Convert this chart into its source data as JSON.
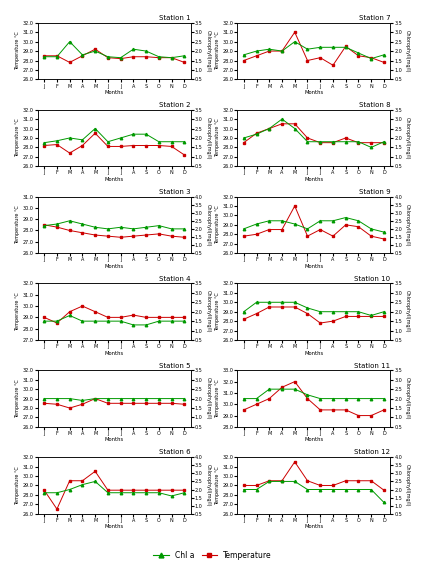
{
  "months": [
    "J",
    "F",
    "M",
    "A",
    "M",
    "J",
    "J",
    "A",
    "S",
    "O",
    "N",
    "D"
  ],
  "stations_left": [
    "Station 1",
    "Station 2",
    "Station 3",
    "Station 4",
    "Station 5",
    "Station 6"
  ],
  "stations_right": [
    "Station 7",
    "Station 8",
    "Station 9",
    "Station 10",
    "Station 11",
    "Station 12"
  ],
  "stations_data": {
    "Station 1": {
      "temp": [
        28.5,
        28.5,
        27.8,
        28.5,
        29.2,
        28.3,
        28.2,
        28.4,
        28.4,
        28.3,
        28.3,
        27.8
      ],
      "chla": [
        1.7,
        1.7,
        2.5,
        1.8,
        2.0,
        1.7,
        1.65,
        2.1,
        2.0,
        1.7,
        1.65,
        1.75
      ],
      "temp_ylim": [
        26.0,
        32.0
      ],
      "chla_ylim": [
        0.5,
        3.5
      ],
      "temp_ticks": [
        26.0,
        27.0,
        28.0,
        29.0,
        30.0,
        31.0,
        32.0
      ],
      "chla_ticks": [
        0.5,
        1.0,
        1.5,
        2.0,
        2.5,
        3.0,
        3.5
      ]
    },
    "Station 2": {
      "temp": [
        28.2,
        28.3,
        27.4,
        28.2,
        29.5,
        28.1,
        28.1,
        28.2,
        28.2,
        28.2,
        28.1,
        27.2
      ],
      "chla": [
        1.75,
        1.85,
        2.0,
        1.9,
        2.5,
        1.8,
        2.0,
        2.2,
        2.2,
        1.8,
        1.8,
        1.8
      ],
      "temp_ylim": [
        26.0,
        32.0
      ],
      "chla_ylim": [
        0.5,
        3.5
      ],
      "temp_ticks": [
        26.0,
        27.0,
        28.0,
        29.0,
        30.0,
        31.0,
        32.0
      ],
      "chla_ticks": [
        0.5,
        1.0,
        1.5,
        2.0,
        2.5,
        3.0,
        3.5
      ]
    },
    "Station 3": {
      "temp": [
        28.5,
        28.3,
        28.0,
        27.8,
        27.6,
        27.5,
        27.4,
        27.5,
        27.6,
        27.7,
        27.5,
        27.4
      ],
      "chla": [
        2.2,
        2.3,
        2.5,
        2.3,
        2.1,
        2.0,
        2.1,
        2.0,
        2.1,
        2.2,
        2.0,
        2.0
      ],
      "temp_ylim": [
        26.0,
        31.0
      ],
      "chla_ylim": [
        0.5,
        4.0
      ],
      "temp_ticks": [
        26.0,
        27.0,
        28.0,
        29.0,
        30.0,
        31.0
      ],
      "chla_ticks": [
        0.5,
        1.0,
        1.5,
        2.0,
        2.5,
        3.0,
        3.5,
        4.0
      ]
    },
    "Station 4": {
      "temp": [
        29.0,
        28.5,
        29.5,
        30.0,
        29.5,
        29.0,
        29.0,
        29.2,
        29.0,
        29.0,
        29.0,
        29.0
      ],
      "chla": [
        1.5,
        1.5,
        1.8,
        1.5,
        1.5,
        1.5,
        1.5,
        1.3,
        1.3,
        1.5,
        1.5,
        1.5
      ],
      "temp_ylim": [
        27.0,
        32.0
      ],
      "chla_ylim": [
        0.5,
        3.5
      ],
      "temp_ticks": [
        27.0,
        28.0,
        29.0,
        30.0,
        31.0,
        32.0
      ],
      "chla_ticks": [
        0.5,
        1.0,
        1.5,
        2.0,
        2.5,
        3.0,
        3.5
      ]
    },
    "Station 5": {
      "temp": [
        28.5,
        28.4,
        28.0,
        28.4,
        29.0,
        28.5,
        28.5,
        28.5,
        28.5,
        28.5,
        28.5,
        28.4
      ],
      "chla": [
        2.0,
        2.0,
        2.0,
        1.9,
        2.0,
        2.0,
        2.0,
        2.0,
        2.0,
        2.0,
        2.0,
        2.0
      ],
      "temp_ylim": [
        26.0,
        32.0
      ],
      "chla_ylim": [
        0.5,
        3.5
      ],
      "temp_ticks": [
        26.0,
        27.0,
        28.0,
        29.0,
        30.0,
        31.0,
        32.0
      ],
      "chla_ticks": [
        0.5,
        1.0,
        1.5,
        2.0,
        2.5,
        3.0,
        3.5
      ]
    },
    "Station 6": {
      "temp": [
        28.5,
        26.5,
        29.5,
        29.5,
        30.5,
        28.5,
        28.5,
        28.5,
        28.5,
        28.5,
        28.5,
        28.5
      ],
      "chla": [
        1.8,
        1.8,
        2.0,
        2.3,
        2.5,
        1.8,
        1.8,
        1.8,
        1.8,
        1.8,
        1.6,
        1.8
      ],
      "temp_ylim": [
        26.0,
        32.0
      ],
      "chla_ylim": [
        0.5,
        4.0
      ],
      "temp_ticks": [
        26.0,
        27.0,
        28.0,
        29.0,
        30.0,
        31.0,
        32.0
      ],
      "chla_ticks": [
        0.5,
        1.0,
        1.5,
        2.0,
        2.5,
        3.0,
        3.5,
        4.0
      ]
    },
    "Station 7": {
      "temp": [
        28.0,
        28.5,
        29.0,
        29.0,
        31.0,
        28.0,
        28.3,
        27.5,
        29.5,
        28.5,
        28.3,
        27.8
      ],
      "chla": [
        1.8,
        2.0,
        2.1,
        2.0,
        2.5,
        2.1,
        2.2,
        2.2,
        2.2,
        1.9,
        1.6,
        1.8
      ],
      "temp_ylim": [
        26.0,
        32.0
      ],
      "chla_ylim": [
        0.5,
        3.5
      ],
      "temp_ticks": [
        26.0,
        27.0,
        28.0,
        29.0,
        30.0,
        31.0,
        32.0
      ],
      "chla_ticks": [
        0.5,
        1.0,
        1.5,
        2.0,
        2.5,
        3.0,
        3.5
      ]
    },
    "Station 8": {
      "temp": [
        28.5,
        29.5,
        30.0,
        30.5,
        30.5,
        29.0,
        28.5,
        28.5,
        29.0,
        28.5,
        28.5,
        28.5
      ],
      "chla": [
        2.0,
        2.2,
        2.5,
        3.0,
        2.5,
        1.8,
        1.8,
        1.8,
        1.8,
        1.8,
        1.5,
        1.8
      ],
      "temp_ylim": [
        26.0,
        32.0
      ],
      "chla_ylim": [
        0.5,
        3.5
      ],
      "temp_ticks": [
        26.0,
        27.0,
        28.0,
        29.0,
        30.0,
        31.0,
        32.0
      ],
      "chla_ticks": [
        0.5,
        1.0,
        1.5,
        2.0,
        2.5,
        3.0,
        3.5
      ]
    },
    "Station 9": {
      "temp": [
        27.8,
        28.0,
        28.5,
        28.5,
        31.0,
        27.8,
        28.5,
        27.8,
        29.0,
        28.8,
        27.8,
        27.5
      ],
      "chla": [
        2.0,
        2.3,
        2.5,
        2.5,
        2.3,
        2.0,
        2.5,
        2.5,
        2.7,
        2.5,
        2.0,
        1.8
      ],
      "temp_ylim": [
        26.0,
        32.0
      ],
      "chla_ylim": [
        0.5,
        4.0
      ],
      "temp_ticks": [
        26.0,
        27.0,
        28.0,
        29.0,
        30.0,
        31.0,
        32.0
      ],
      "chla_ticks": [
        0.5,
        1.0,
        1.5,
        2.0,
        2.5,
        3.0,
        3.5,
        4.0
      ]
    },
    "Station 10": {
      "temp": [
        28.2,
        28.8,
        29.5,
        29.5,
        29.5,
        28.8,
        27.8,
        28.0,
        28.5,
        28.5,
        28.5,
        28.5
      ],
      "chla": [
        2.0,
        2.5,
        2.5,
        2.5,
        2.5,
        2.2,
        2.0,
        2.0,
        2.0,
        2.0,
        1.8,
        2.0
      ],
      "temp_ylim": [
        26.0,
        32.0
      ],
      "chla_ylim": [
        0.5,
        3.5
      ],
      "temp_ticks": [
        26.0,
        27.0,
        28.0,
        29.0,
        30.0,
        31.0,
        32.0
      ],
      "chla_ticks": [
        0.5,
        1.0,
        1.5,
        2.0,
        2.5,
        3.0,
        3.5
      ]
    },
    "Station 11": {
      "temp": [
        29.5,
        30.0,
        30.5,
        31.5,
        32.0,
        30.5,
        29.5,
        29.5,
        29.5,
        29.0,
        29.0,
        29.5
      ],
      "chla": [
        2.0,
        2.0,
        2.5,
        2.5,
        2.5,
        2.2,
        2.0,
        2.0,
        2.0,
        2.0,
        2.0,
        2.0
      ],
      "temp_ylim": [
        28.0,
        33.0
      ],
      "chla_ylim": [
        0.5,
        3.5
      ],
      "temp_ticks": [
        28.0,
        29.0,
        30.0,
        31.0,
        32.0,
        33.0
      ],
      "chla_ticks": [
        0.5,
        1.0,
        1.5,
        2.0,
        2.5,
        3.0,
        3.5
      ]
    },
    "Station 12": {
      "temp": [
        29.0,
        29.0,
        29.5,
        29.5,
        31.5,
        29.5,
        29.0,
        29.0,
        29.5,
        29.5,
        29.5,
        28.5
      ],
      "chla": [
        2.0,
        2.0,
        2.5,
        2.5,
        2.5,
        2.0,
        2.0,
        2.0,
        2.0,
        2.0,
        2.0,
        1.2
      ],
      "temp_ylim": [
        26.0,
        32.0
      ],
      "chla_ylim": [
        0.5,
        4.0
      ],
      "temp_ticks": [
        26.0,
        27.0,
        28.0,
        29.0,
        30.0,
        31.0,
        32.0
      ],
      "chla_ticks": [
        0.5,
        1.0,
        1.5,
        2.0,
        2.5,
        3.0,
        3.5,
        4.0
      ]
    }
  },
  "temp_color": "#CC0000",
  "chla_color": "#009900",
  "temp_ylabel": "Temperature °C",
  "chla_ylabel": "Chlorophyll(mg/l)"
}
